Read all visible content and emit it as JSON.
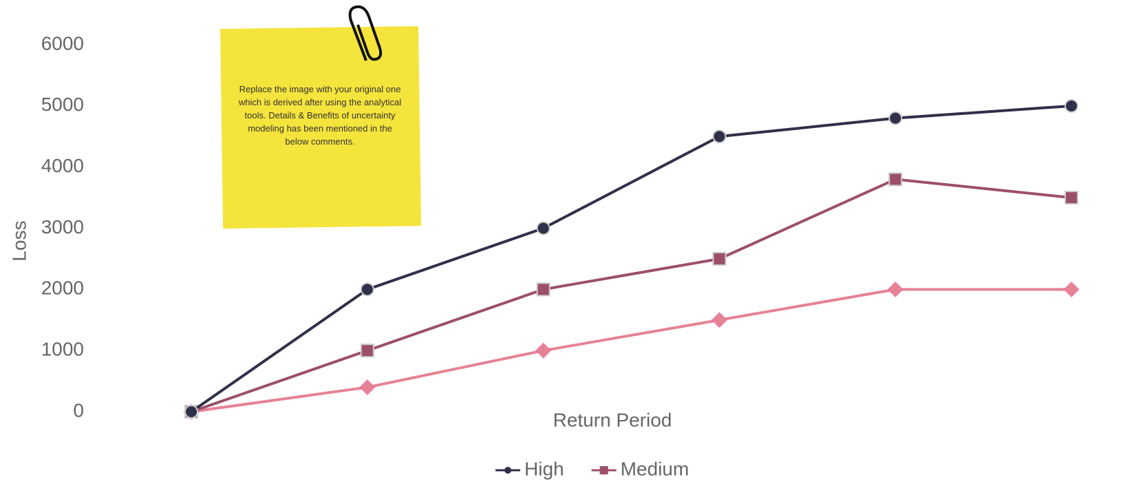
{
  "chart_data": {
    "type": "line",
    "y_label": "Loss",
    "x_label": "Return Period",
    "annotation": "Replace the image with your original one which is derived after using the analytical tools. Details & Benefits of uncertainty modeling has been mentioned in the below comments.",
    "categories": [
      null,
      null,
      null,
      null,
      null,
      null
    ],
    "series": [
      {
        "name": "High",
        "color": "#2f3049",
        "marker": "circle",
        "values": [
          0,
          2000,
          3000,
          4500,
          4800,
          5000
        ]
      },
      {
        "name": "Medium",
        "color": "#9c4f6a",
        "marker": "square",
        "values": [
          0,
          1000,
          2000,
          2500,
          3800,
          3500
        ]
      },
      {
        "color": "#e58393",
        "marker": "diamond",
        "values": [
          0,
          400,
          1000,
          1500,
          2000,
          2000
        ]
      }
    ],
    "ylim": [
      0,
      6000
    ],
    "yticks": [
      0,
      1000,
      2000,
      3000,
      4000,
      5000,
      6000
    ],
    "grid": false
  }
}
